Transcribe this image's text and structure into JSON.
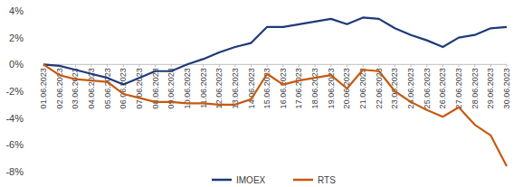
{
  "chart_data": {
    "type": "line",
    "categories": [
      "01.06.2023",
      "02.06.2023",
      "03.06.2023",
      "04.06.2023",
      "05.06.2023",
      "06.06.2023",
      "07.06.2023",
      "08.06.2023",
      "09.06.2023",
      "10.06.2023",
      "11.06.2023",
      "12.06.2023",
      "13.06.2023",
      "14.06.2023",
      "15.06.2023",
      "16.06.2023",
      "17.06.2023",
      "18.06.2023",
      "19.06.2023",
      "20.06.2023",
      "21.06.2023",
      "22.06.2023",
      "23.06.2023",
      "24.06.2023",
      "25.06.2023",
      "26.06.2023",
      "27.06.2023",
      "28.06.2023",
      "29.06.2023",
      "30.06.2023"
    ],
    "series": [
      {
        "name": "IMOEX",
        "color": "#1f3a7a",
        "values": [
          0,
          -0.1,
          -0.4,
          -0.7,
          -1.0,
          -1.5,
          -1.0,
          -0.5,
          -0.5,
          0,
          0.4,
          0.9,
          1.3,
          1.6,
          2.8,
          2.8,
          3.0,
          3.2,
          3.4,
          3.0,
          3.5,
          3.4,
          2.7,
          2.2,
          1.8,
          1.3,
          2.0,
          2.2,
          2.7,
          2.8
        ]
      },
      {
        "name": "RTS",
        "color": "#c55a11",
        "values": [
          0,
          -0.8,
          -1.1,
          -1.2,
          -1.3,
          -2.2,
          -2.5,
          -2.8,
          -2.8,
          -2.9,
          -2.9,
          -3.0,
          -3.0,
          -2.6,
          -0.7,
          -1.5,
          -1.2,
          -1.0,
          -0.8,
          -1.8,
          -0.4,
          -0.5,
          -2.0,
          -2.8,
          -3.4,
          -3.9,
          -3.2,
          -4.5,
          -5.3,
          -7.6
        ]
      }
    ],
    "ylim": [
      -8,
      4
    ],
    "yticks": [
      {
        "value": -8,
        "label": "-8%"
      },
      {
        "value": -6,
        "label": "-6%"
      },
      {
        "value": -4,
        "label": "-4%"
      },
      {
        "value": -2,
        "label": "-2%"
      },
      {
        "value": 0,
        "label": "0%"
      },
      {
        "value": 2,
        "label": "2%"
      },
      {
        "value": 4,
        "label": "4%"
      }
    ],
    "grid": false,
    "legend": "bottom"
  }
}
